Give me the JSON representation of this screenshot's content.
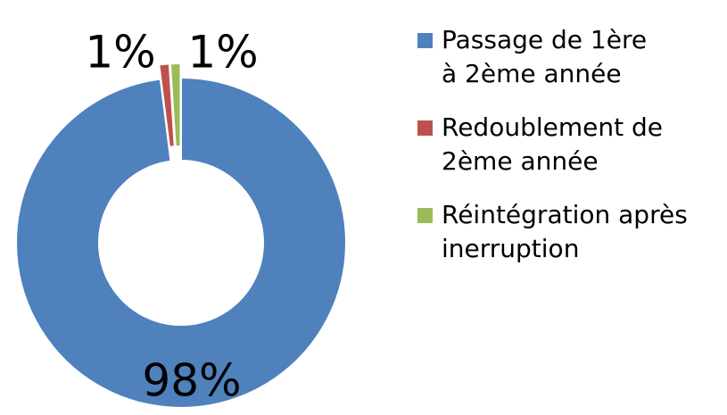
{
  "chart_data": {
    "type": "donut",
    "categories": [
      "Passage de 1ère à 2ème année",
      "Redoublement de 2ème année",
      "Réintégration après inerruption"
    ],
    "values": [
      98,
      1,
      1
    ],
    "value_labels": [
      "98%",
      "1%",
      "1%"
    ],
    "colors": [
      "#4f81bd",
      "#c0504d",
      "#9bbb59"
    ],
    "legend": "right"
  }
}
